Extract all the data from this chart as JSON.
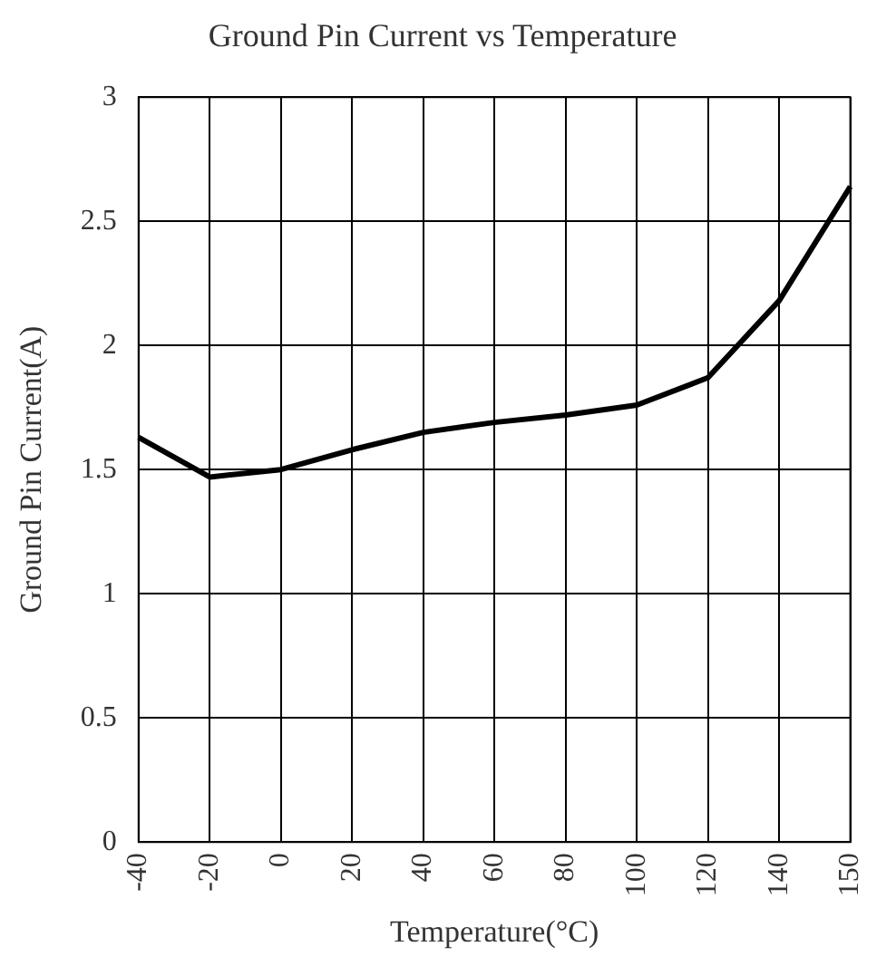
{
  "chart_data": {
    "type": "line",
    "title": "Ground Pin Current vs Temperature",
    "xlabel": "Temperature(°C)",
    "ylabel": "Ground Pin Current(A)",
    "categories": [
      "-40",
      "-20",
      "0",
      "20",
      "40",
      "60",
      "80",
      "100",
      "120",
      "140",
      "150"
    ],
    "series": [
      {
        "color": "#000000",
        "values": [
          1.63,
          1.47,
          1.5,
          1.58,
          1.65,
          1.69,
          1.72,
          1.76,
          1.87,
          2.18,
          2.64
        ]
      }
    ],
    "ylim": [
      0,
      3
    ],
    "yticks": [
      0,
      0.5,
      1,
      1.5,
      2,
      2.5,
      3
    ],
    "grid": true,
    "legend": false,
    "marker": "none",
    "line_style": "solid"
  }
}
